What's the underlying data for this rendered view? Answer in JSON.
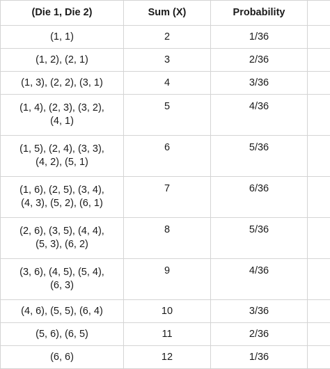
{
  "table": {
    "headers": [
      "(Die 1, Die 2)",
      "Sum (X)",
      "Probability"
    ],
    "rows": [
      {
        "outcomes": "(1, 1)",
        "sum": "2",
        "probability": "1/36"
      },
      {
        "outcomes": "(1, 2), (2, 1)",
        "sum": "3",
        "probability": "2/36"
      },
      {
        "outcomes": "(1, 3), (2, 2), (3, 1)",
        "sum": "4",
        "probability": "3/36"
      },
      {
        "outcomes_line1": "(1, 4), (2, 3), (3, 2),",
        "outcomes_line2": "(4, 1)",
        "sum": "5",
        "probability": "4/36"
      },
      {
        "outcomes_line1": "(1, 5), (2, 4), (3, 3),",
        "outcomes_line2": "(4, 2), (5, 1)",
        "sum": "6",
        "probability": "5/36"
      },
      {
        "outcomes_line1": "(1, 6), (2, 5), (3, 4),",
        "outcomes_line2": "(4, 3), (5, 2), (6, 1)",
        "sum": "7",
        "probability": "6/36"
      },
      {
        "outcomes_line1": "(2, 6), (3, 5), (4, 4),",
        "outcomes_line2": "(5, 3), (6, 2)",
        "sum": "8",
        "probability": "5/36"
      },
      {
        "outcomes_line1": "(3, 6), (4, 5), (5, 4),",
        "outcomes_line2": "(6, 3)",
        "sum": "9",
        "probability": "4/36"
      },
      {
        "outcomes": "(4, 6), (5, 5), (6, 4)",
        "sum": "10",
        "probability": "3/36"
      },
      {
        "outcomes": "(5, 6), (6, 5)",
        "sum": "11",
        "probability": "2/36"
      },
      {
        "outcomes": "(6, 6)",
        "sum": "12",
        "probability": "1/36"
      }
    ]
  }
}
